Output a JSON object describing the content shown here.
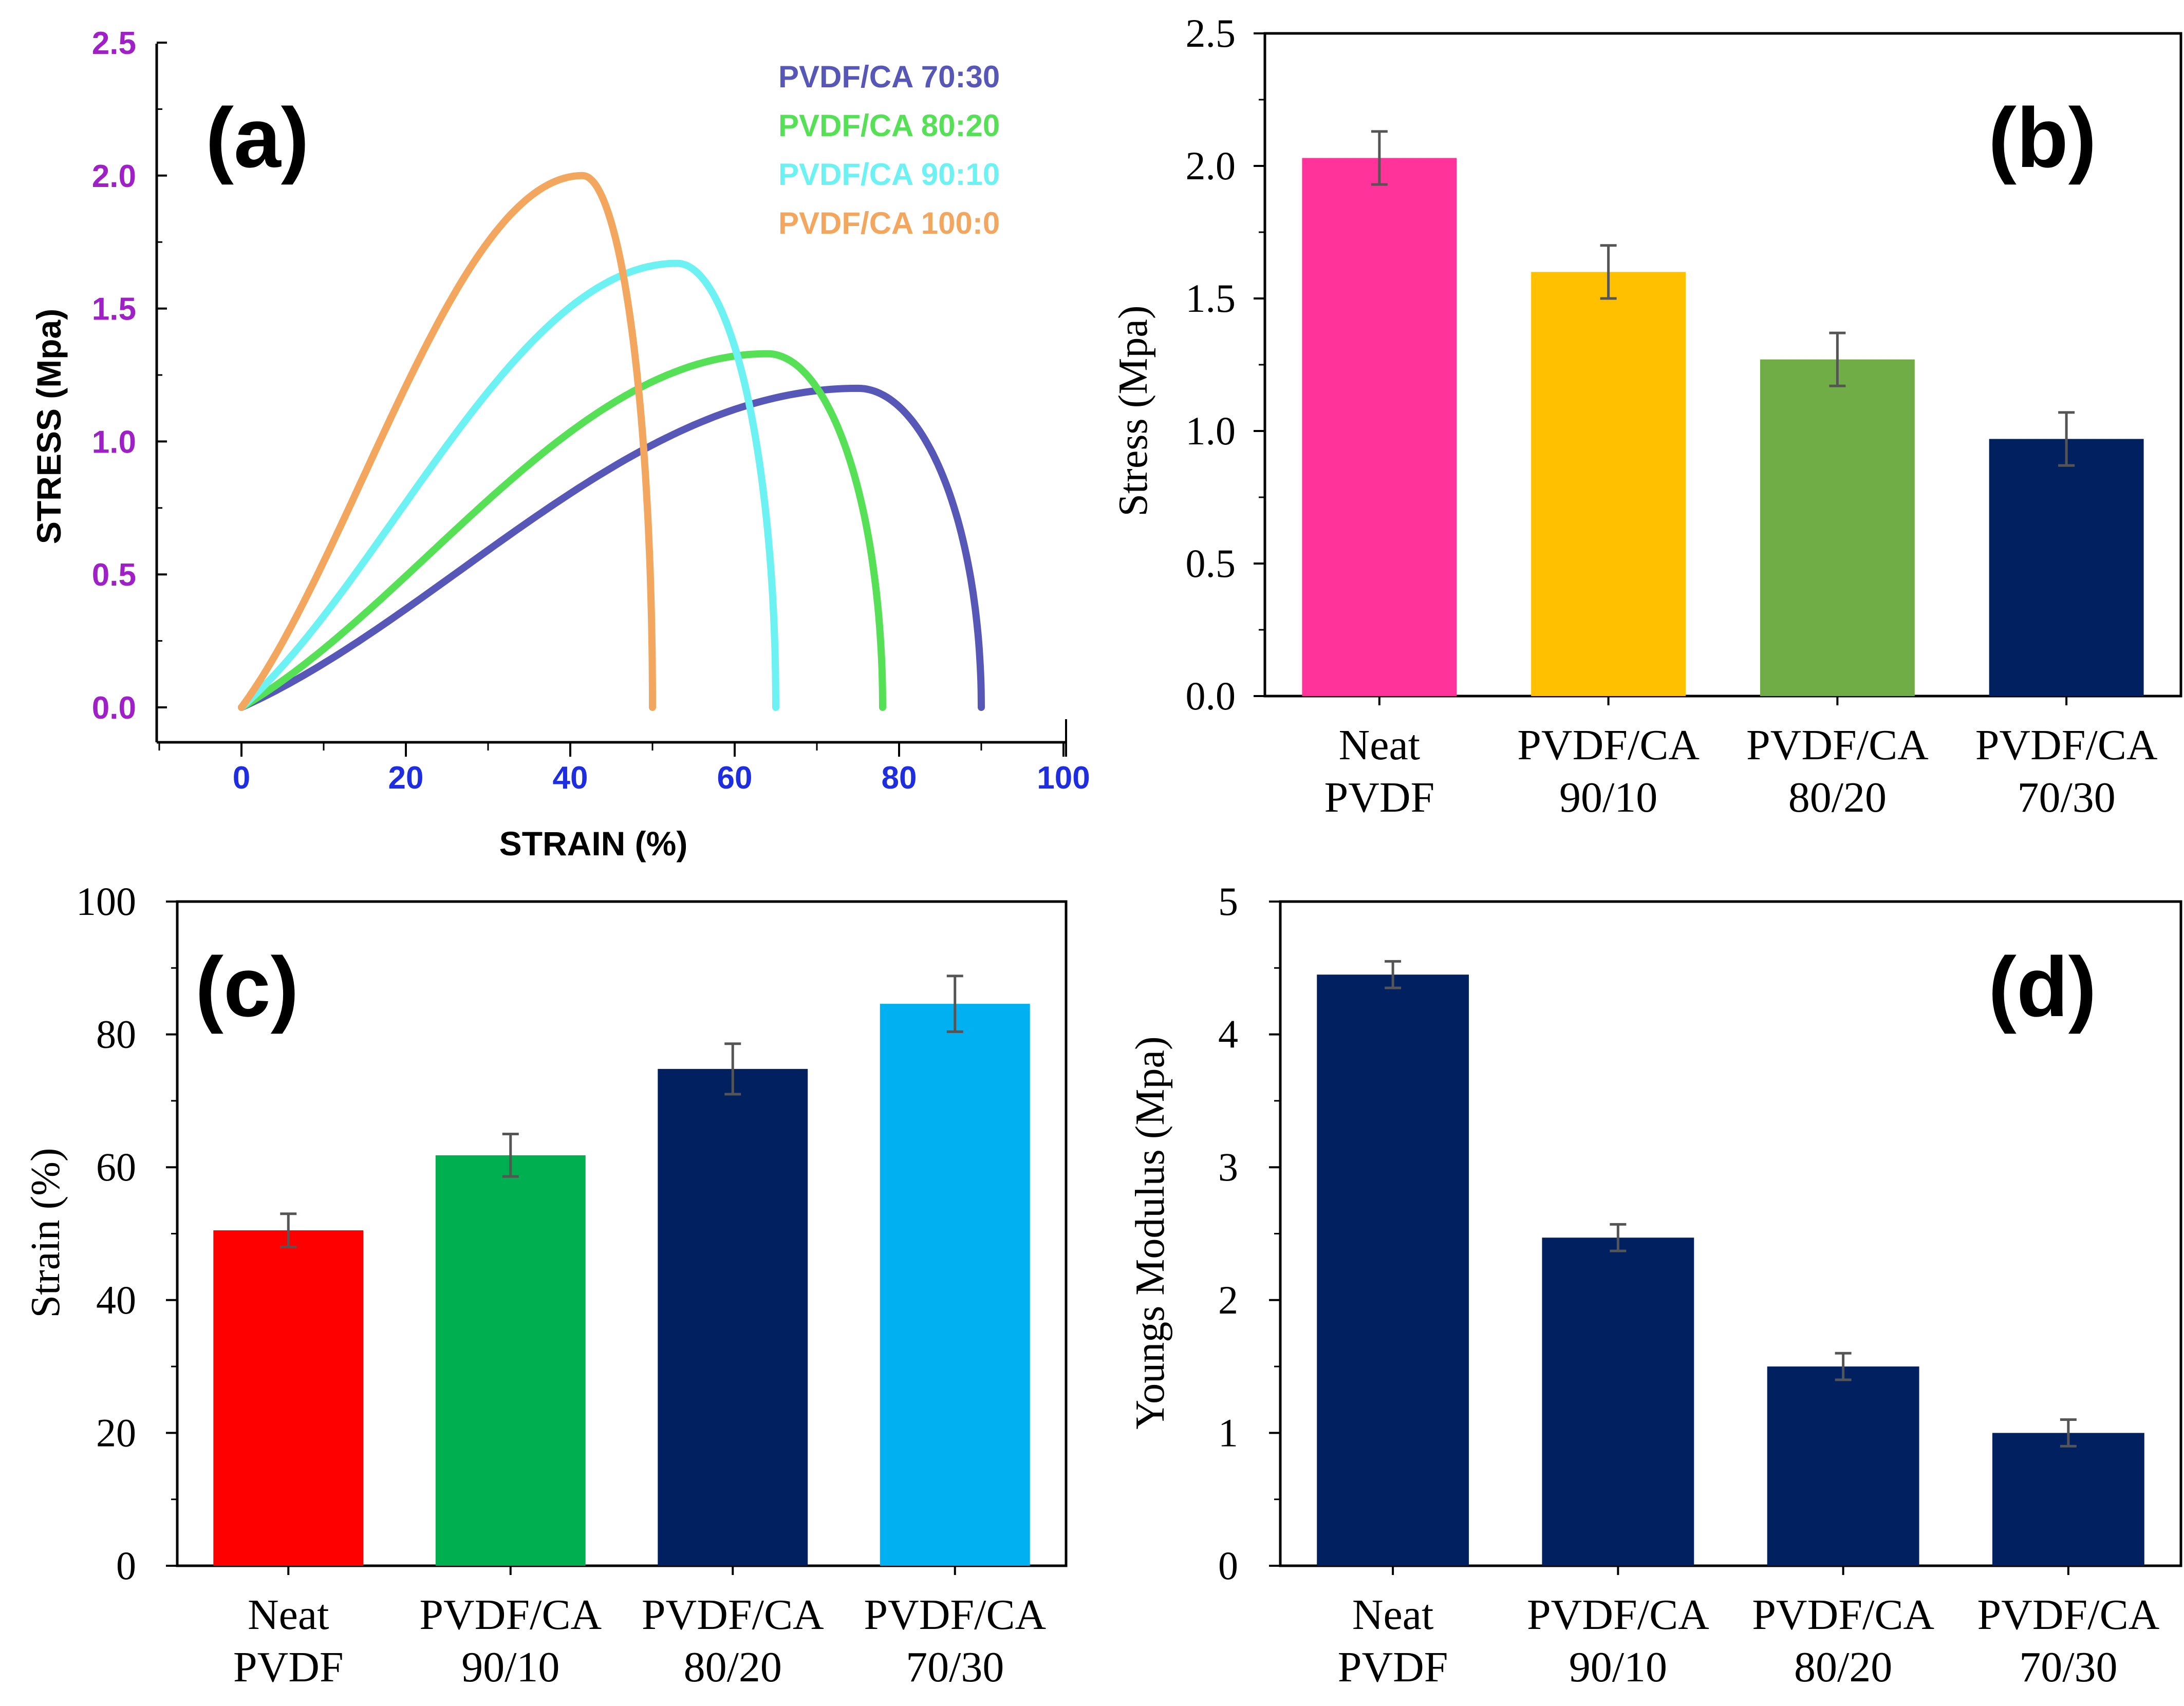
{
  "chart_data": [
    {
      "panel": "a",
      "type": "line",
      "panel_label": "(a)",
      "xlabel": "STRAIN (%)",
      "ylabel": "STRESS (Mpa)",
      "xlim": [
        -10,
        100
      ],
      "ylim": [
        -0.13,
        2.5
      ],
      "xticks": [
        "0",
        "20",
        "40",
        "60",
        "80",
        "100"
      ],
      "yticks": [
        "0.0",
        "0.5",
        "1.0",
        "1.5",
        "2.0",
        "2.5"
      ],
      "legend_position": "top-right",
      "series": [
        {
          "name": "PVDF/CA 70:30",
          "color": "#5757b8",
          "peak_strain": 75,
          "peak_stress": 1.2,
          "break_strain": 90
        },
        {
          "name": "PVDF/CA 80:20",
          "color": "#55e055",
          "peak_strain": 64,
          "peak_stress": 1.33,
          "break_strain": 78
        },
        {
          "name": "PVDF/CA 90:10",
          "color": "#6cf2f2",
          "peak_strain": 53,
          "peak_stress": 1.67,
          "break_strain": 65
        },
        {
          "name": "PVDF/CA 100:0",
          "color": "#f3a75e",
          "peak_strain": 41.5,
          "peak_stress": 2.0,
          "break_strain": 50
        }
      ]
    },
    {
      "panel": "b",
      "type": "bar",
      "panel_label": "(b)",
      "ylabel": "Stress (Mpa)",
      "ylim": [
        0,
        2.5
      ],
      "yticks": [
        "0.0",
        "0.5",
        "1.0",
        "1.5",
        "2.0",
        "2.5"
      ],
      "categories": [
        [
          "Neat",
          "PVDF"
        ],
        [
          "PVDF/CA",
          "90/10"
        ],
        [
          "PVDF/CA",
          "80/20"
        ],
        [
          "PVDF/CA",
          "70/30"
        ]
      ],
      "values": [
        2.03,
        1.6,
        1.27,
        0.97
      ],
      "errors": [
        0.1,
        0.1,
        0.1,
        0.1
      ],
      "colors": [
        "#ff3399",
        "#ffc000",
        "#70ad47",
        "#002060"
      ]
    },
    {
      "panel": "c",
      "type": "bar",
      "panel_label": "(c)",
      "ylabel": "Strain (%)",
      "ylim": [
        0,
        100
      ],
      "yticks": [
        "0",
        "20",
        "40",
        "60",
        "80",
        "100"
      ],
      "categories": [
        [
          "Neat",
          "PVDF"
        ],
        [
          "PVDF/CA",
          "90/10"
        ],
        [
          "PVDF/CA",
          "80/20"
        ],
        [
          "PVDF/CA",
          "70/30"
        ]
      ],
      "values": [
        50.5,
        61.8,
        74.8,
        84.6
      ],
      "errors": [
        2.5,
        3.2,
        3.8,
        4.2
      ],
      "colors": [
        "#ff0000",
        "#00b050",
        "#002060",
        "#00b0f0"
      ]
    },
    {
      "panel": "d",
      "type": "bar",
      "panel_label": "(d)",
      "ylabel": "Youngs Modulus (Mpa)",
      "ylim": [
        0,
        5
      ],
      "yticks": [
        "0",
        "1",
        "2",
        "3",
        "4",
        "5"
      ],
      "categories": [
        [
          "Neat",
          "PVDF"
        ],
        [
          "PVDF/CA",
          "90/10"
        ],
        [
          "PVDF/CA",
          "80/20"
        ],
        [
          "PVDF/CA",
          "70/30"
        ]
      ],
      "values": [
        4.45,
        2.47,
        1.5,
        1.0
      ],
      "errors": [
        0.1,
        0.1,
        0.1,
        0.1
      ],
      "colors": [
        "#002060",
        "#002060",
        "#002060",
        "#002060"
      ]
    }
  ]
}
